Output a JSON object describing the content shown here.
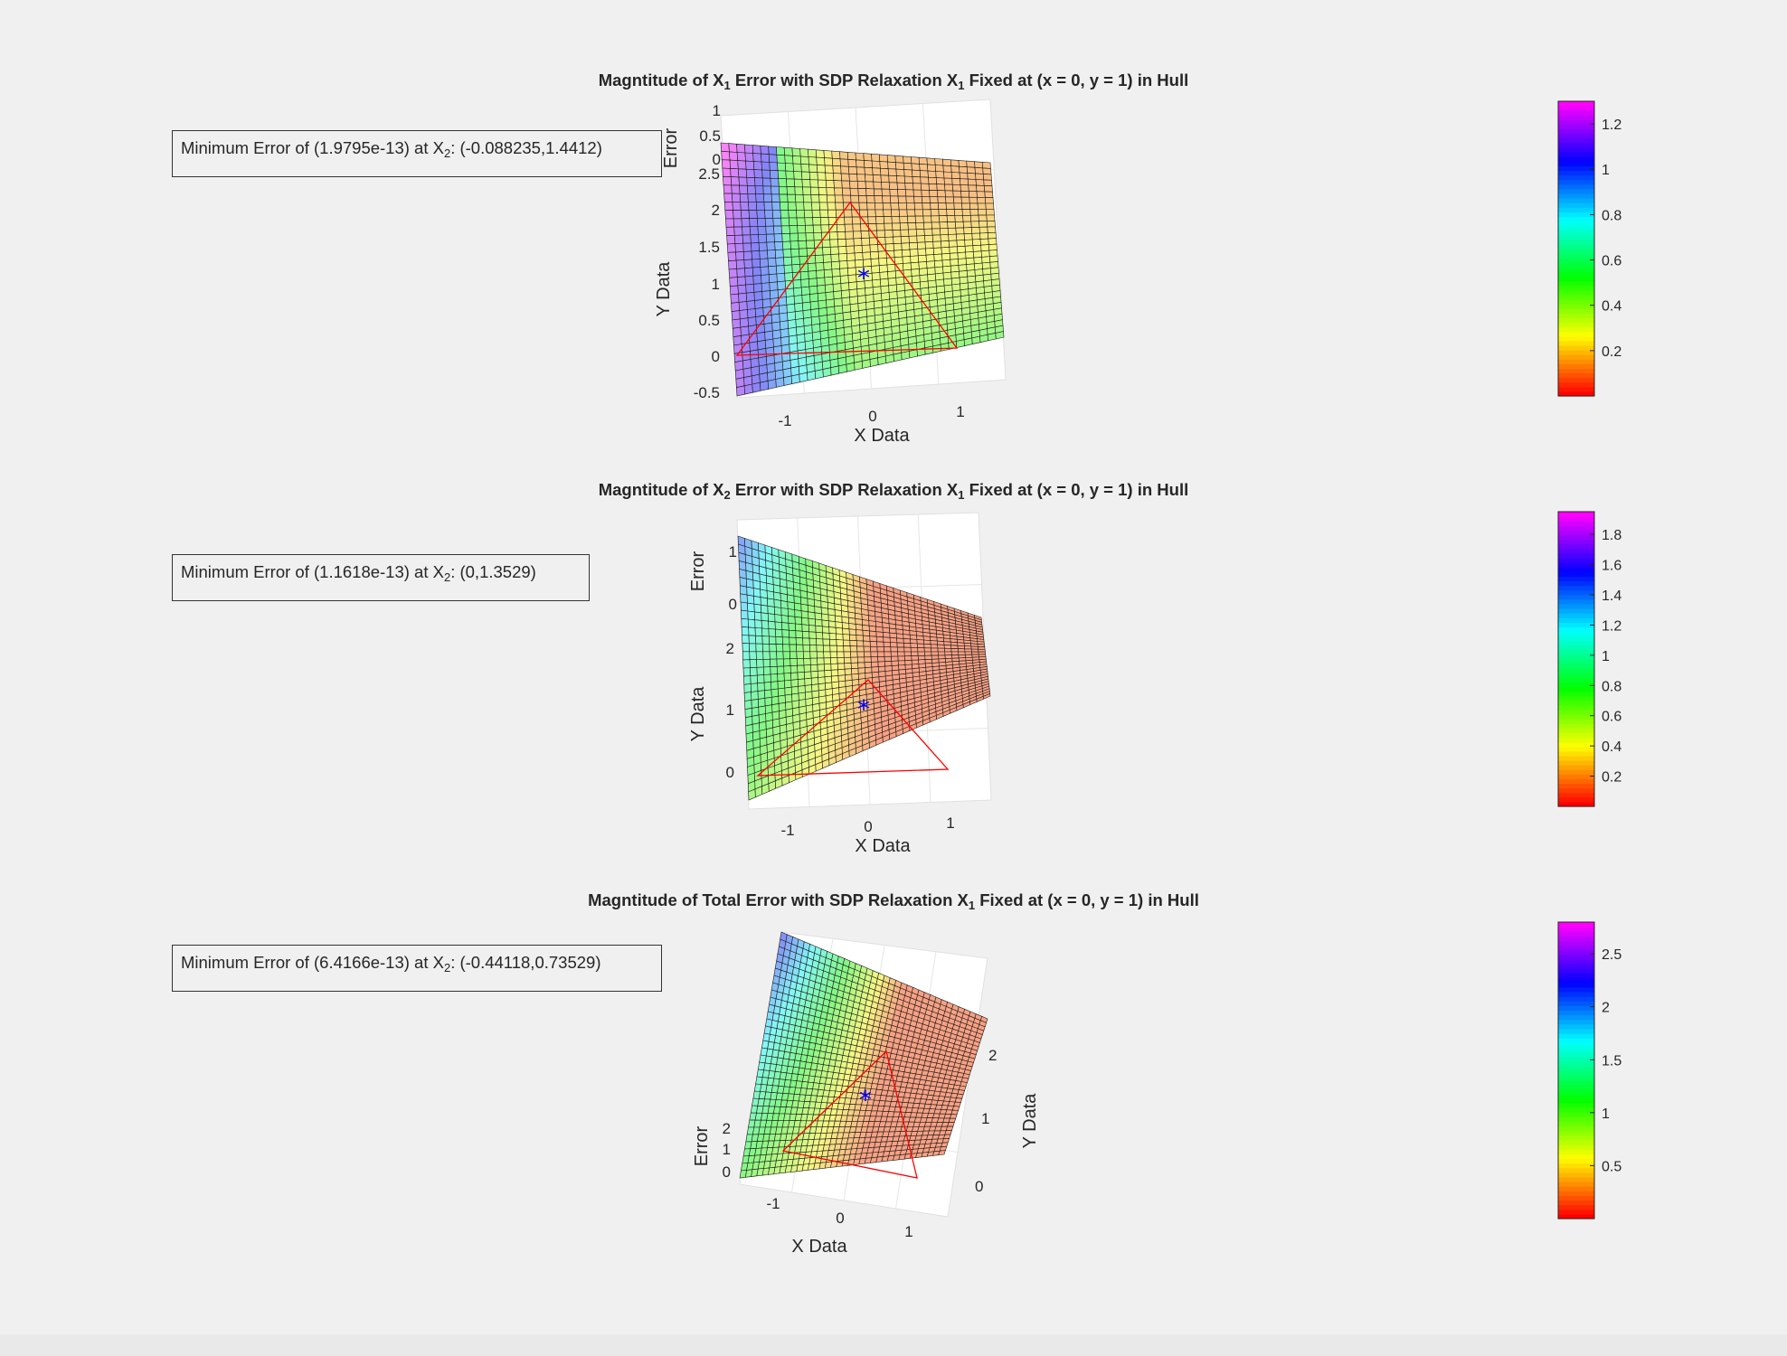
{
  "figure": {
    "background": "#f0f0f0",
    "surface_edge_color": "#000000",
    "hull_color": "#ff0000",
    "marker_color": "#0000ff",
    "colormap": "hsv",
    "marker_symbol": "*"
  },
  "plots": [
    {
      "title_parts": [
        "Magntitude of X",
        "1",
        " Error with SDP Relaxation X",
        "1",
        " Fixed at (x = 0, y = 1) in Hull"
      ],
      "annotation_parts": [
        "Minimum Error of (1.9795e-13) at X",
        "2",
        ": (-0.088235,1.4412)"
      ],
      "x_ticks": [
        "-1",
        "0",
        "1"
      ],
      "y_ticks": [
        "-0.5",
        "0",
        "0.5",
        "1",
        "1.5",
        "2",
        "2.5"
      ],
      "z_ticks": [
        "0",
        "0.5",
        "1"
      ],
      "xlabel": "X Data",
      "ylabel": "Y Data",
      "zlabel": "Error",
      "colorbar_ticks": [
        "0.2",
        "0.4",
        "0.6",
        "0.8",
        "1",
        "1.2"
      ]
    },
    {
      "title_parts": [
        "Magntitude of X",
        "2",
        " Error with SDP Relaxation X",
        "1",
        " Fixed at (x = 0, y = 1) in Hull"
      ],
      "annotation_parts": [
        "Minimum Error of (1.1618e-13) at X",
        "2",
        ": (0,1.3529)"
      ],
      "x_ticks": [
        "-1",
        "0",
        "1"
      ],
      "y_ticks": [
        "0",
        "1",
        "2"
      ],
      "z_ticks": [
        "0",
        "1"
      ],
      "xlabel": "X Data",
      "ylabel": "Y Data",
      "zlabel": "Error",
      "colorbar_ticks": [
        "0.2",
        "0.4",
        "0.6",
        "0.8",
        "1",
        "1.2",
        "1.4",
        "1.6",
        "1.8"
      ]
    },
    {
      "title_parts": [
        "Magntitude of Total Error with SDP Relaxation X",
        "1",
        " Fixed at (x = 0, y = 1) in Hull"
      ],
      "annotation_parts": [
        "Minimum Error of (6.4166e-13) at X",
        "2",
        ": (-0.44118,0.73529)"
      ],
      "x_ticks": [
        "-1",
        "0",
        "1"
      ],
      "y_ticks": [
        "0",
        "1",
        "2"
      ],
      "z_ticks": [
        "0",
        "1",
        "2"
      ],
      "xlabel": "X Data",
      "ylabel": "Y Data",
      "zlabel": "Error",
      "colorbar_ticks": [
        "0.5",
        "1",
        "1.5",
        "2",
        "2.5"
      ]
    }
  ],
  "chart_data": [
    {
      "type": "surface",
      "title": "Magntitude of X1 Error with SDP Relaxation X1 Fixed at (x = 0, y = 1) in Hull",
      "xlabel": "X Data",
      "ylabel": "Y Data",
      "zlabel": "Error",
      "xlim": [
        -1.5,
        1.5
      ],
      "ylim": [
        -0.5,
        2.5
      ],
      "zlim": [
        0,
        1
      ],
      "color_range": [
        0,
        1.3
      ],
      "hull_triangle": [
        [
          -1.5,
          0
        ],
        [
          1.5,
          0
        ],
        [
          0,
          2.5
        ]
      ],
      "fixed_point": [
        0,
        1
      ],
      "min_error": 1.9795e-13,
      "min_location": [
        -0.088235,
        1.4412
      ]
    },
    {
      "type": "surface",
      "title": "Magntitude of X2 Error with SDP Relaxation X1 Fixed at (x = 0, y = 1) in Hull",
      "xlabel": "X Data",
      "ylabel": "Y Data",
      "zlabel": "Error",
      "xlim": [
        -1.5,
        1.5
      ],
      "ylim": [
        -0.5,
        2.5
      ],
      "zlim": [
        0,
        1.5
      ],
      "color_range": [
        0,
        1.95
      ],
      "hull_triangle": [
        [
          -1.5,
          0
        ],
        [
          1.5,
          0
        ],
        [
          0,
          2.5
        ]
      ],
      "fixed_point": [
        0,
        1
      ],
      "min_error": 1.1618e-13,
      "min_location": [
        0,
        1.3529
      ]
    },
    {
      "type": "surface",
      "title": "Magntitude of Total Error with SDP Relaxation X1 Fixed at (x = 0, y = 1) in Hull",
      "xlabel": "X Data",
      "ylabel": "Y Data",
      "zlabel": "Error",
      "xlim": [
        -1.5,
        1.5
      ],
      "ylim": [
        -0.5,
        2.5
      ],
      "zlim": [
        0,
        2.5
      ],
      "color_range": [
        0,
        2.8
      ],
      "hull_triangle": [
        [
          -1.5,
          0
        ],
        [
          1.5,
          0
        ],
        [
          0,
          2.5
        ]
      ],
      "fixed_point": [
        0,
        1
      ],
      "min_error": 6.4166e-13,
      "min_location": [
        -0.44118,
        0.73529
      ]
    }
  ]
}
